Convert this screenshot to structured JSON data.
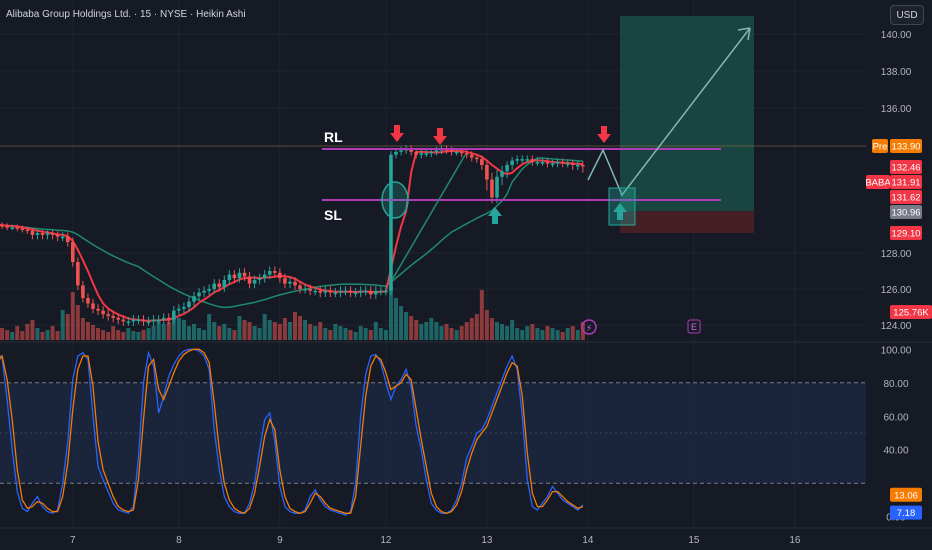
{
  "header": {
    "title": "Alibaba Group Holdings Ltd. · 15 · NYSE · Heikin Ashi"
  },
  "currency_button": "USD",
  "colors": {
    "background": "#161a25",
    "grid": "#1f2430",
    "bull": "#26a69a",
    "bear": "#ef5350",
    "ma_red": "#f23645",
    "ma_teal": "#1f8a70",
    "level_line": "#b03ab7",
    "stoch_k": "#2962ff",
    "stoch_d": "#f57c00",
    "target_zone": "#1a4a44",
    "stop_zone": "#4a1f27",
    "annotation_arrow_red": "#f23645",
    "annotation_arrow_green": "#26a69a"
  },
  "annotations": {
    "rl_label": "RL",
    "sl_label": "SL",
    "earnings_marker": "E"
  },
  "price_badges": [
    {
      "text": "Pre",
      "price": 133.9,
      "bg": "#f57c00",
      "fg": "#ffffff"
    },
    {
      "text": "133.90",
      "price": 133.9,
      "bg": "#f57c00",
      "fg": "#ffffff"
    },
    {
      "text": "132.46",
      "price": 132.46,
      "bg": "#f23645",
      "fg": "#ffffff"
    },
    {
      "text": "BABA",
      "price": 131.91,
      "bg": "#f23645",
      "fg": "#ffffff"
    },
    {
      "text": "131.91",
      "price": 131.91,
      "bg": "#f23645",
      "fg": "#ffffff"
    },
    {
      "text": "131.62",
      "price": 131.62,
      "bg": "#f23645",
      "fg": "#ffffff"
    },
    {
      "text": "130.96",
      "price": 130.96,
      "bg": "#787b86",
      "fg": "#ffffff"
    },
    {
      "text": "129.10",
      "price": 129.1,
      "bg": "#f23645",
      "fg": "#ffffff"
    },
    {
      "text": "125.76K",
      "price": 125.76,
      "bg": "#f23645",
      "fg": "#ffffff"
    }
  ],
  "oscillator_badges": [
    {
      "text": "13.06",
      "value": 13.06,
      "bg": "#f57c00",
      "fg": "#ffffff"
    },
    {
      "text": "7.18",
      "value": 7.18,
      "bg": "#2962ff",
      "fg": "#ffffff"
    }
  ],
  "chart_data": [
    {
      "type": "candlestick",
      "title": "Alibaba Group Holdings Ltd. · 15 · NYSE · Heikin Ashi",
      "ylim": [
        123.5,
        141.0
      ],
      "y_ticks": [
        {
          "value": 140,
          "label": "140.00"
        },
        {
          "value": 138,
          "label": "138.00"
        },
        {
          "value": 136,
          "label": "136.00"
        },
        {
          "value": 128,
          "label": "128.00"
        },
        {
          "value": 126,
          "label": "126.00"
        },
        {
          "value": 124,
          "label": "124.00"
        }
      ],
      "x_ticks": [
        {
          "bar": 16,
          "label": "7"
        },
        {
          "bar": 37,
          "label": "8"
        },
        {
          "bar": 57,
          "label": "9"
        },
        {
          "bar": 78,
          "label": "12"
        },
        {
          "bar": 98,
          "label": "13"
        },
        {
          "bar": 118,
          "label": "14"
        },
        {
          "bar": 139,
          "label": "15"
        },
        {
          "bar": 159,
          "label": "16"
        }
      ],
      "bars_total": 186,
      "close": [
        129.9,
        129.8,
        129.7,
        129.6,
        129.6,
        129.5,
        129.4,
        129.3,
        129.0,
        129.1,
        129.0,
        129.1,
        129.0,
        128.9,
        128.9,
        128.6,
        127.5,
        126.2,
        125.5,
        125.2,
        124.9,
        124.8,
        124.6,
        124.5,
        124.4,
        124.3,
        124.2,
        124.2,
        124.3,
        124.3,
        124.2,
        124.2,
        124.3,
        124.3,
        124.4,
        124.3,
        124.8,
        124.9,
        125.0,
        125.3,
        125.6,
        125.8,
        125.9,
        126.0,
        126.3,
        126.1,
        126.5,
        126.8,
        126.6,
        126.9,
        126.7,
        126.3,
        126.5,
        126.6,
        126.8,
        127.0,
        126.9,
        126.6,
        126.3,
        126.4,
        126.2,
        126.0,
        126.0,
        125.9,
        125.9,
        125.8,
        125.9,
        125.8,
        125.8,
        125.9,
        125.9,
        125.8,
        125.8,
        125.9,
        125.9,
        125.7,
        125.9,
        125.9,
        125.9,
        133.3,
        133.5,
        133.6,
        133.7,
        133.5,
        133.3,
        133.4,
        133.4,
        133.5,
        133.6,
        133.7,
        133.6,
        133.5,
        133.5,
        133.4,
        133.3,
        133.1,
        133.0,
        132.6,
        132.0,
        131.6,
        132.1,
        132.3,
        132.6,
        132.9,
        133.0,
        133.0,
        133.0,
        132.8,
        132.8,
        132.8,
        132.7,
        132.7,
        132.8,
        132.7,
        132.7,
        132.6,
        132.6,
        132.5
      ],
      "open": [
        129.8,
        129.9,
        129.8,
        129.7,
        129.6,
        129.6,
        129.5,
        129.4,
        129.3,
        129.0,
        129.1,
        129.0,
        129.1,
        129.0,
        128.9,
        128.9,
        128.6,
        127.5,
        126.2,
        125.5,
        125.2,
        124.9,
        124.8,
        124.6,
        124.5,
        124.4,
        124.3,
        124.2,
        124.2,
        124.3,
        124.3,
        124.2,
        124.2,
        124.3,
        124.3,
        124.4,
        124.3,
        124.8,
        124.9,
        125.0,
        125.3,
        125.6,
        125.8,
        125.9,
        126.0,
        126.3,
        126.1,
        126.5,
        126.8,
        126.6,
        126.9,
        126.7,
        126.3,
        126.5,
        126.6,
        126.8,
        127.0,
        126.9,
        126.6,
        126.3,
        126.4,
        126.2,
        126.0,
        126.0,
        125.9,
        125.9,
        125.8,
        125.9,
        125.8,
        125.8,
        125.9,
        125.9,
        125.8,
        125.8,
        125.9,
        125.9,
        125.7,
        125.9,
        125.9,
        125.9,
        133.3,
        133.5,
        133.6,
        133.7,
        133.5,
        133.3,
        133.4,
        133.4,
        133.5,
        133.6,
        133.7,
        133.6,
        133.5,
        133.5,
        133.4,
        133.3,
        133.1,
        133.0,
        132.6,
        132.0,
        131.6,
        132.1,
        132.3,
        132.6,
        132.9,
        133.0,
        133.0,
        133.0,
        132.8,
        132.8,
        132.8,
        132.7,
        132.7,
        132.8,
        132.7,
        132.7,
        132.6,
        132.6
      ],
      "overlays": {
        "rl_level": 133.9,
        "sl_level": 131.0,
        "target_price": 141.0,
        "entry_price": 131.0,
        "stop_price": 129.1,
        "red_arrow_bars": [
          79,
          86,
          117
        ],
        "green_arrow_bars": [
          97,
          120
        ]
      }
    },
    {
      "type": "line",
      "title": "Stochastic",
      "ylim": [
        -2,
        102
      ],
      "y_ticks": [
        {
          "value": 100,
          "label": "100.00"
        },
        {
          "value": 80,
          "label": "80.00"
        },
        {
          "value": 60,
          "label": "60.00"
        },
        {
          "value": 40,
          "label": "40.00"
        },
        {
          "value": 0,
          "label": "0.00"
        }
      ],
      "bands": [
        20,
        80
      ],
      "series": [
        {
          "key": "k",
          "values": [
            85,
            98,
            95,
            70,
            40,
            15,
            5,
            3,
            8,
            12,
            6,
            3,
            2,
            4,
            20,
            45,
            82,
            96,
            98,
            94,
            60,
            30,
            22,
            15,
            8,
            4,
            3,
            2,
            6,
            35,
            80,
            98,
            90,
            62,
            72,
            84,
            91,
            96,
            99,
            100,
            100,
            99,
            96,
            88,
            52,
            28,
            12,
            6,
            3,
            2,
            2,
            8,
            20,
            40,
            58,
            62,
            45,
            18,
            6,
            3,
            2,
            2,
            4,
            12,
            16,
            10,
            6,
            4,
            3,
            2,
            1,
            3,
            20,
            60,
            85,
            96,
            97,
            92,
            80,
            70,
            78,
            82,
            88,
            78,
            54,
            40,
            22,
            8,
            4,
            2,
            2,
            4,
            10,
            20,
            35,
            42,
            50,
            52,
            58,
            66,
            74,
            82,
            90,
            96,
            88,
            60,
            22,
            6,
            4,
            8,
            12,
            18,
            14,
            10,
            8,
            6,
            4,
            7
          ]
        },
        {
          "key": "d",
          "values": [
            80,
            92,
            96,
            82,
            58,
            28,
            10,
            5,
            6,
            9,
            8,
            5,
            3,
            3,
            12,
            32,
            64,
            88,
            96,
            96,
            78,
            45,
            28,
            20,
            12,
            6,
            4,
            3,
            4,
            22,
            58,
            90,
            94,
            76,
            70,
            78,
            86,
            93,
            97,
            99,
            100,
            100,
            98,
            92,
            68,
            40,
            20,
            10,
            5,
            3,
            2,
            5,
            14,
            30,
            48,
            58,
            52,
            28,
            12,
            5,
            3,
            2,
            3,
            8,
            14,
            12,
            8,
            5,
            4,
            3,
            2,
            2,
            12,
            42,
            72,
            90,
            96,
            94,
            86,
            76,
            78,
            80,
            85,
            82,
            64,
            46,
            30,
            14,
            6,
            3,
            2,
            3,
            7,
            15,
            28,
            38,
            46,
            50,
            54,
            62,
            70,
            78,
            86,
            92,
            90,
            72,
            38,
            14,
            6,
            6,
            10,
            15,
            15,
            12,
            9,
            7,
            5,
            6
          ]
        }
      ]
    }
  ]
}
